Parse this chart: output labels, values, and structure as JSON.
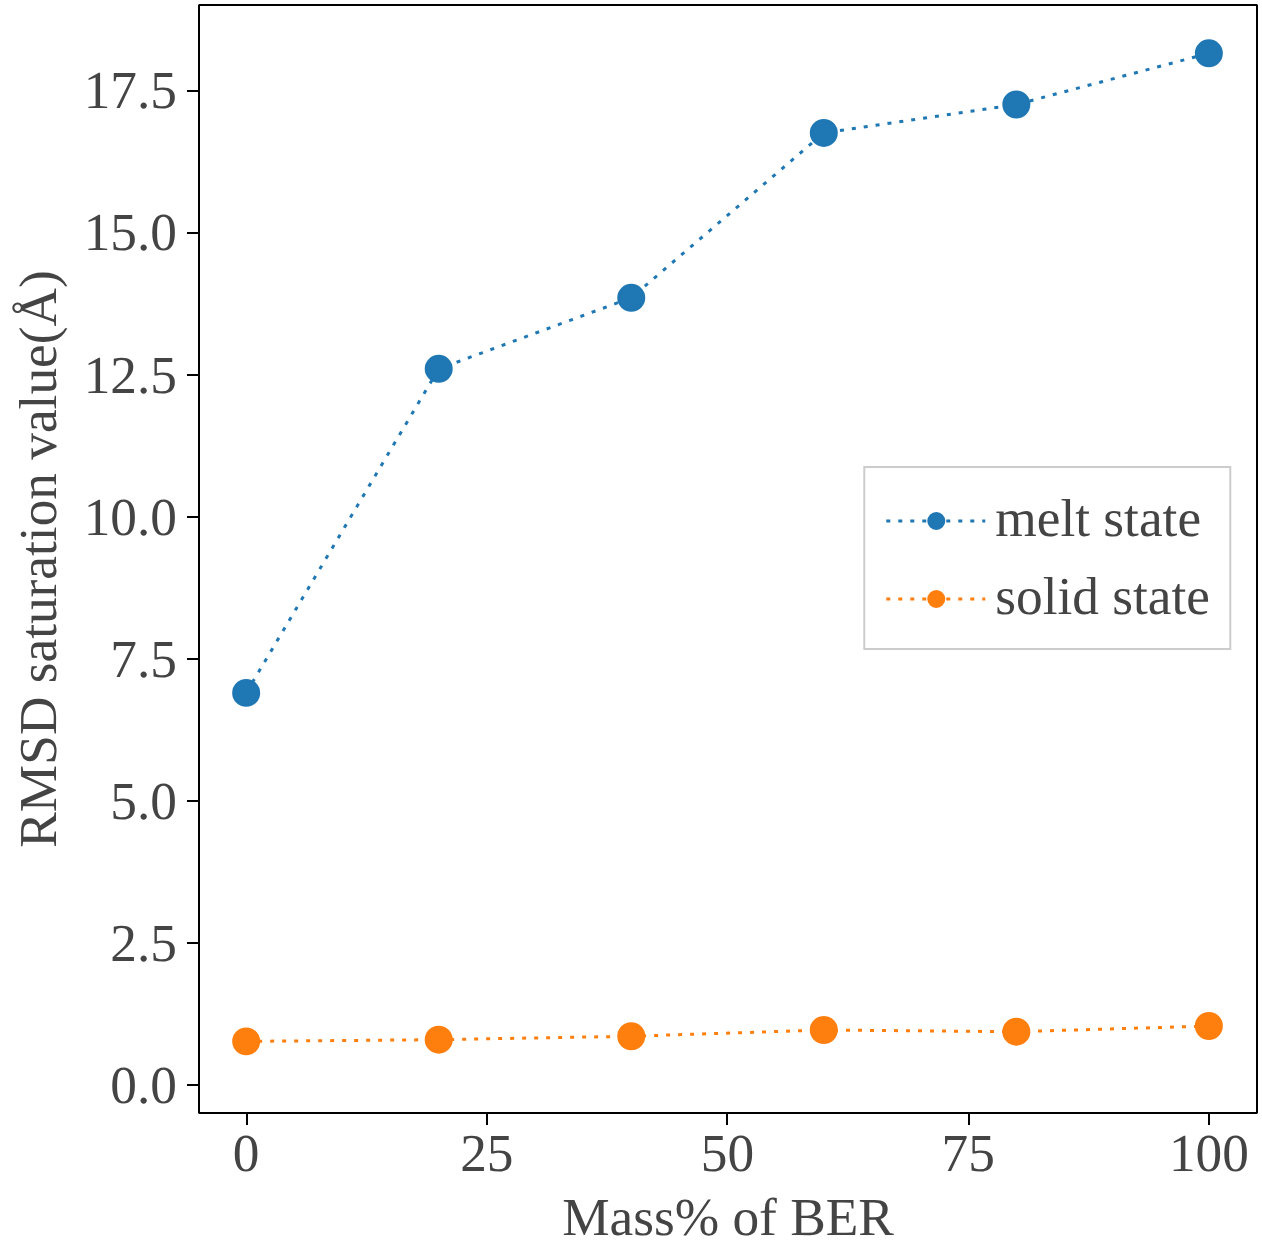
{
  "chart_data": {
    "type": "line",
    "xlabel": "Mass% of BER",
    "ylabel": "RMSD saturation value(Å)",
    "x": [
      0,
      20,
      40,
      60,
      80,
      100
    ],
    "series": [
      {
        "name": "melt state",
        "color": "#1f77b4",
        "values": [
          6.9,
          12.6,
          13.85,
          16.75,
          17.25,
          18.15
        ]
      },
      {
        "name": "solid state",
        "color": "#ff7f0e",
        "values": [
          0.77,
          0.8,
          0.86,
          0.97,
          0.94,
          1.04
        ]
      }
    ],
    "xlim": [
      -4.9,
      105
    ],
    "ylim": [
      -0.49,
      19.0
    ],
    "xticks": [
      0,
      25,
      50,
      75,
      100
    ],
    "yticks": [
      {
        "value": 0,
        "label": "0.0"
      },
      {
        "value": 2.5,
        "label": "2.5"
      },
      {
        "value": 5,
        "label": "5.0"
      },
      {
        "value": 7.5,
        "label": "7.5"
      },
      {
        "value": 10,
        "label": "10.0"
      },
      {
        "value": 12.5,
        "label": "12.5"
      },
      {
        "value": 15,
        "label": "15.0"
      },
      {
        "value": 17.5,
        "label": "17.5"
      }
    ],
    "grid": false,
    "legend": "right",
    "marker": "circle",
    "line_style": "dotted"
  }
}
